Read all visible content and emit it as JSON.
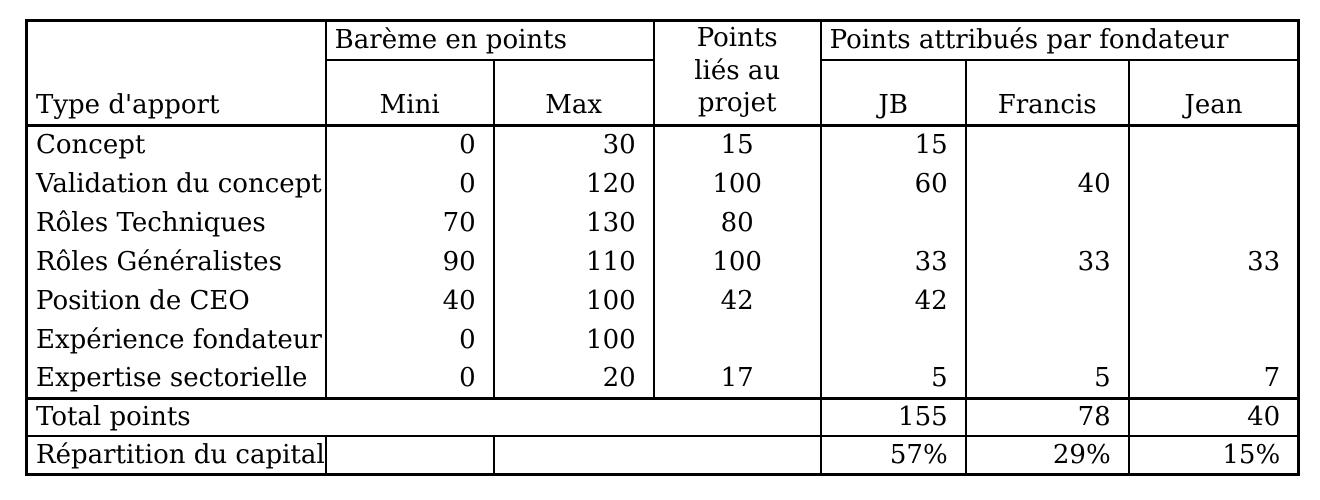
{
  "colors": {
    "border": "#000000",
    "text": "#000000",
    "background": "#ffffff"
  },
  "table": {
    "header": {
      "type_apport": "Type d'apport",
      "bareme_group": "Barème en points",
      "mini": "Mini",
      "max": "Max",
      "points_projet": "Points\nliés au\nprojet",
      "fondateur_group": "Points attribués par fondateur",
      "founders": [
        "JB",
        "Francis",
        "Jean"
      ]
    },
    "rows": [
      {
        "label": "Concept",
        "mini": "0",
        "max": "30",
        "points": "15",
        "jb": "15",
        "francis": "",
        "jean": ""
      },
      {
        "label": "Validation du concept",
        "mini": "0",
        "max": "120",
        "points": "100",
        "jb": "60",
        "francis": "40",
        "jean": ""
      },
      {
        "label": "Rôles Techniques",
        "mini": "70",
        "max": "130",
        "points": "80",
        "jb": "",
        "francis": "",
        "jean": ""
      },
      {
        "label": "Rôles Généralistes",
        "mini": "90",
        "max": "110",
        "points": "100",
        "jb": "33",
        "francis": "33",
        "jean": "33"
      },
      {
        "label": "Position de CEO",
        "mini": "40",
        "max": "100",
        "points": "42",
        "jb": "42",
        "francis": "",
        "jean": ""
      },
      {
        "label": "Expérience fondateur",
        "mini": "0",
        "max": "100",
        "points": "",
        "jb": "",
        "francis": "",
        "jean": ""
      },
      {
        "label": "Expertise sectorielle",
        "mini": "0",
        "max": "20",
        "points": "17",
        "jb": "5",
        "francis": "5",
        "jean": "7"
      }
    ],
    "total_row": {
      "label": "Total points",
      "jb": "155",
      "francis": "78",
      "jean": "40"
    },
    "repartition_row": {
      "label": "Répartition du capital",
      "jb": "57%",
      "francis": "29%",
      "jean": "15%"
    }
  }
}
